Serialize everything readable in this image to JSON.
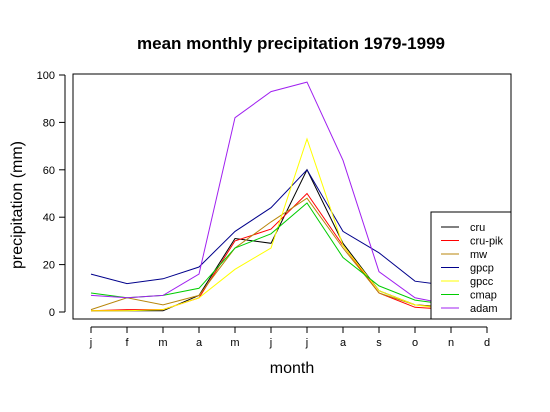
{
  "chart_data": {
    "type": "line",
    "title": "mean monthly precipitation 1979-1999",
    "xlabel": "month",
    "ylabel": "precipitation (mm)",
    "categories": [
      "j",
      "f",
      "m",
      "a",
      "m",
      "j",
      "j",
      "a",
      "s",
      "o",
      "n",
      "d"
    ],
    "yticks": [
      "0",
      "20",
      "40",
      "60",
      "80",
      "100"
    ],
    "ylim": [
      0,
      100
    ],
    "grid": false,
    "legend_position": "bottom-right",
    "series": [
      {
        "name": "cru",
        "color": "#000000",
        "values": [
          0.5,
          0.5,
          0.5,
          7,
          31,
          29,
          60,
          29,
          9,
          3,
          2,
          1
        ]
      },
      {
        "name": "cru-pik",
        "color": "#ff0000",
        "values": [
          0.5,
          1,
          1,
          6,
          30,
          35,
          50,
          28,
          8,
          2,
          1,
          1
        ]
      },
      {
        "name": "mw",
        "color": "#b8860b",
        "values": [
          1,
          6,
          3,
          7,
          27,
          38,
          48,
          27,
          8,
          3,
          2,
          1
        ]
      },
      {
        "name": "gpcp",
        "color": "#00008b",
        "values": [
          16,
          12,
          14,
          19,
          34,
          44,
          60,
          34,
          25,
          13,
          11,
          14
        ]
      },
      {
        "name": "gpcc",
        "color": "#ffff00",
        "values": [
          0.5,
          0.5,
          1,
          6,
          18,
          27,
          73,
          28,
          9,
          3,
          1,
          1
        ]
      },
      {
        "name": "cmap",
        "color": "#00cc00",
        "values": [
          8,
          6,
          7,
          10,
          27,
          33,
          46,
          23,
          11,
          5,
          3,
          3
        ]
      },
      {
        "name": "adam",
        "color": "#a020f0",
        "values": [
          7,
          6,
          7,
          16,
          82,
          93,
          97,
          64,
          17,
          6,
          3,
          2
        ]
      }
    ]
  }
}
